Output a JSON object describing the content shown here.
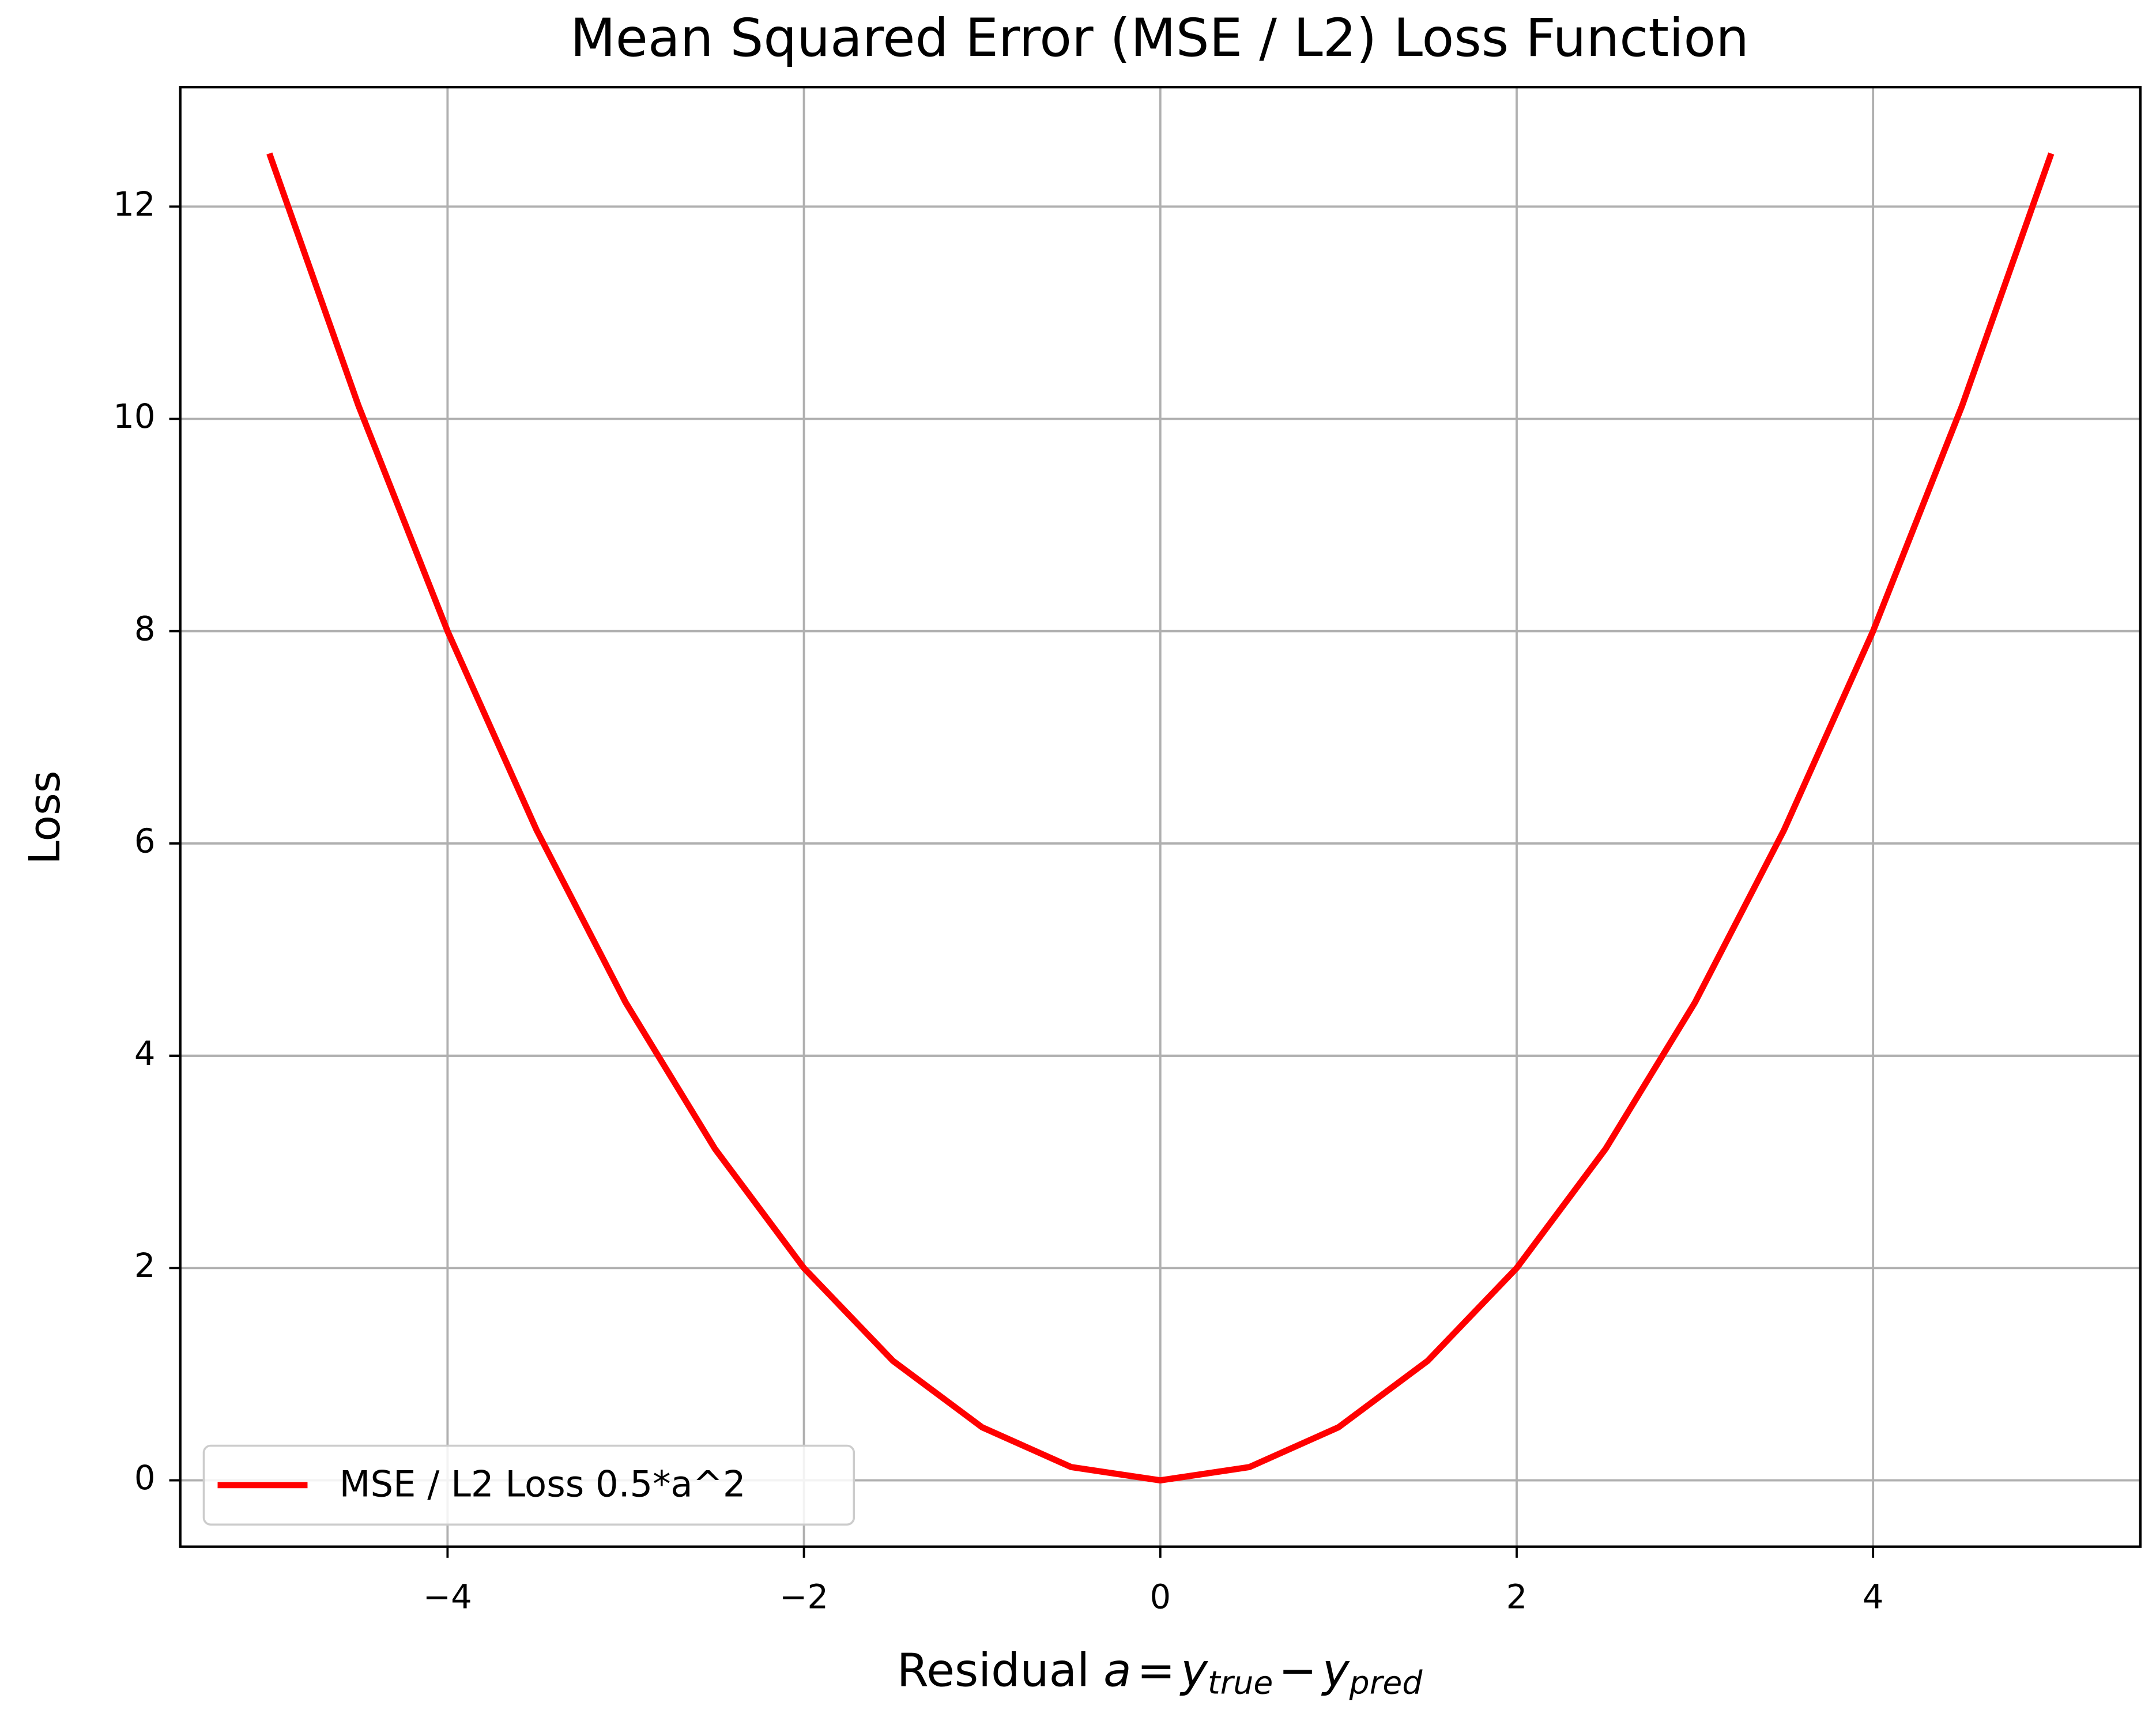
{
  "chart_data": {
    "type": "line",
    "title": "Mean Squared Error (MSE / L2) Loss Function",
    "xlabel_parts": [
      "Residual",
      "a",
      "=",
      "y",
      "true",
      "−",
      "y",
      "pred"
    ],
    "ylabel": "Loss",
    "x": [
      -5,
      -4.5,
      -4,
      -3.5,
      -3,
      -2.5,
      -2,
      -1.5,
      -1,
      -0.5,
      0,
      0.5,
      1,
      1.5,
      2,
      2.5,
      3,
      3.5,
      4,
      4.5,
      5
    ],
    "series": [
      {
        "name": "MSE / L2 Loss 0.5*a^2",
        "color": "#ff0000",
        "values": [
          12.5,
          10.125,
          8,
          6.125,
          4.5,
          3.125,
          2,
          1.125,
          0.5,
          0.125,
          0,
          0.125,
          0.5,
          1.125,
          2,
          3.125,
          4.5,
          6.125,
          8,
          10.125,
          12.5
        ]
      }
    ],
    "xlim": [
      -5.5,
      5.5
    ],
    "ylim": [
      -0.625,
      13.125
    ],
    "xticks": [
      {
        "value": -4,
        "label": "−4"
      },
      {
        "value": -2,
        "label": "−2"
      },
      0,
      2,
      4
    ],
    "yticks": [
      0,
      2,
      4,
      6,
      8,
      10,
      12
    ],
    "grid": true,
    "legend": "lower left"
  }
}
